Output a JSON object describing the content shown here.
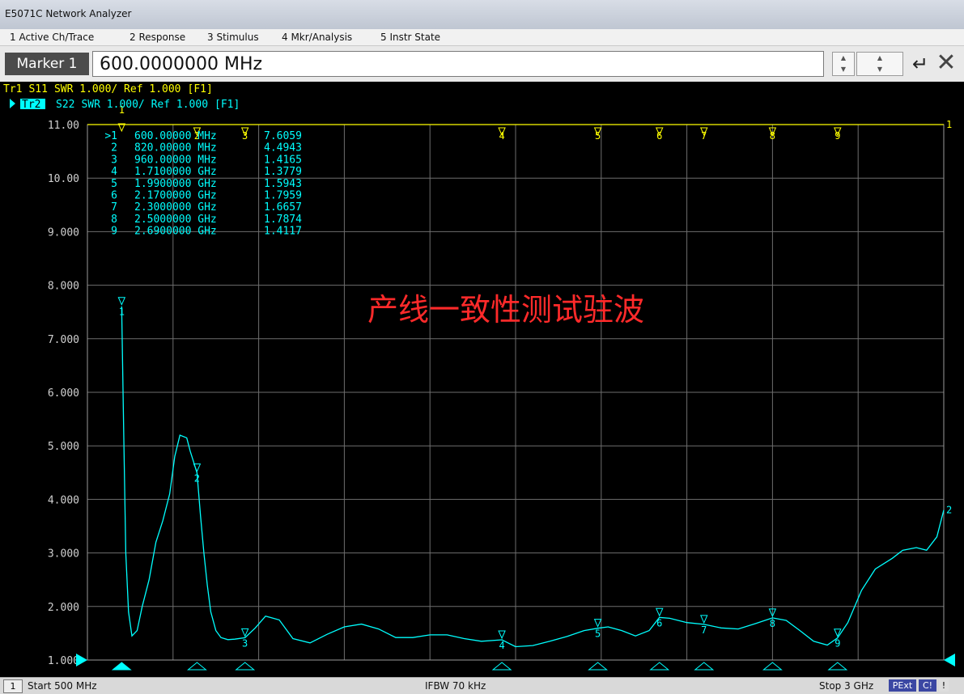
{
  "window": {
    "title": "E5071C Network Analyzer"
  },
  "menu": [
    {
      "label": "1 Active Ch/Trace"
    },
    {
      "label": "2 Response"
    },
    {
      "label": "3 Stimulus"
    },
    {
      "label": "4 Mkr/Analysis"
    },
    {
      "label": "5 Instr State"
    }
  ],
  "entry": {
    "label": "Marker 1",
    "value": "600.0000000 MHz"
  },
  "traces": [
    {
      "id": "Tr1",
      "param": "S11",
      "format": "SWR 1.000/ Ref 1.000",
      "tag": "[F1]",
      "color": "#ffff00"
    },
    {
      "id": "Tr2",
      "param": "S22",
      "format": "SWR 1.000/ Ref 1.000",
      "tag": "[F1]",
      "color": "#00ffff",
      "active": true
    }
  ],
  "marker_table": [
    {
      "num": ">1",
      "stim": "600.00000 MHz",
      "value": "7.6059"
    },
    {
      "num": "2",
      "stim": "820.00000 MHz",
      "value": "4.4943"
    },
    {
      "num": "3",
      "stim": "960.00000 MHz",
      "value": "1.4165"
    },
    {
      "num": "4",
      "stim": "1.7100000 GHz",
      "value": "1.3779"
    },
    {
      "num": "5",
      "stim": "1.9900000 GHz",
      "value": "1.5943"
    },
    {
      "num": "6",
      "stim": "2.1700000 GHz",
      "value": "1.7959"
    },
    {
      "num": "7",
      "stim": "2.3000000 GHz",
      "value": "1.6657"
    },
    {
      "num": "8",
      "stim": "2.5000000 GHz",
      "value": "1.7874"
    },
    {
      "num": "9",
      "stim": "2.6900000 GHz",
      "value": "1.4117"
    }
  ],
  "annotation": {
    "text": "产线一致性测试驻波",
    "color": "#ff2a2a"
  },
  "status": {
    "channel": "1",
    "start": "Start 500 MHz",
    "ifbw": "IFBW 70 kHz",
    "stop": "Stop 3 GHz",
    "badge_pext": "PExt",
    "badge_c": "C!",
    "badge_excl": "!"
  },
  "chart_data": {
    "type": "line",
    "xlabel": "",
    "ylabel": "",
    "xlim_mhz": [
      500,
      3000
    ],
    "ylim": [
      1.0,
      11.0
    ],
    "y_ticks": [
      "11.00",
      "10.00",
      "9.000",
      "8.000",
      "7.000",
      "6.000",
      "5.000",
      "4.000",
      "3.000",
      "2.000",
      "1.000"
    ],
    "grid": true,
    "series": [
      {
        "name": "Tr1",
        "color": "#ffff00",
        "x_mhz": [
          500,
          3000
        ],
        "y": [
          11.0,
          11.0
        ]
      },
      {
        "name": "Tr2",
        "color": "#00ffff",
        "x_mhz": [
          600,
          606,
          612,
          620,
          630,
          645,
          660,
          680,
          700,
          720,
          740,
          755,
          770,
          790,
          800,
          810,
          820,
          830,
          840,
          850,
          860,
          875,
          890,
          910,
          930,
          960,
          990,
          1020,
          1060,
          1100,
          1150,
          1200,
          1250,
          1300,
          1350,
          1400,
          1450,
          1500,
          1550,
          1600,
          1650,
          1710,
          1750,
          1800,
          1850,
          1900,
          1950,
          1990,
          2020,
          2060,
          2100,
          2140,
          2170,
          2200,
          2250,
          2300,
          2350,
          2400,
          2450,
          2500,
          2540,
          2580,
          2620,
          2660,
          2690,
          2720,
          2760,
          2800,
          2850,
          2880,
          2920,
          2950,
          2980,
          3000
        ],
        "y": [
          7.6059,
          5.2,
          3.0,
          1.9,
          1.45,
          1.55,
          2.0,
          2.5,
          3.2,
          3.6,
          4.1,
          4.8,
          5.2,
          5.15,
          4.9,
          4.7,
          4.4943,
          3.7,
          3.0,
          2.4,
          1.9,
          1.55,
          1.42,
          1.38,
          1.39,
          1.4165,
          1.6,
          1.82,
          1.75,
          1.4,
          1.32,
          1.48,
          1.62,
          1.67,
          1.58,
          1.42,
          1.42,
          1.47,
          1.47,
          1.4,
          1.35,
          1.3779,
          1.25,
          1.27,
          1.35,
          1.44,
          1.55,
          1.5943,
          1.62,
          1.55,
          1.45,
          1.55,
          1.7959,
          1.78,
          1.7,
          1.6657,
          1.6,
          1.58,
          1.68,
          1.7874,
          1.74,
          1.55,
          1.35,
          1.28,
          1.4117,
          1.7,
          2.3,
          2.7,
          2.9,
          3.05,
          3.1,
          3.05,
          3.3,
          3.8
        ]
      }
    ],
    "markers": [
      {
        "id": "1",
        "x_mhz": 600,
        "y": 7.6059
      },
      {
        "id": "2",
        "x_mhz": 820,
        "y": 4.4943
      },
      {
        "id": "3",
        "x_mhz": 960,
        "y": 1.4165
      },
      {
        "id": "4",
        "x_mhz": 1710,
        "y": 1.3779
      },
      {
        "id": "5",
        "x_mhz": 1990,
        "y": 1.5943
      },
      {
        "id": "6",
        "x_mhz": 2170,
        "y": 1.7959
      },
      {
        "id": "7",
        "x_mhz": 2300,
        "y": 1.6657
      },
      {
        "id": "8",
        "x_mhz": 2500,
        "y": 1.7874
      },
      {
        "id": "9",
        "x_mhz": 2690,
        "y": 1.4117
      }
    ]
  }
}
